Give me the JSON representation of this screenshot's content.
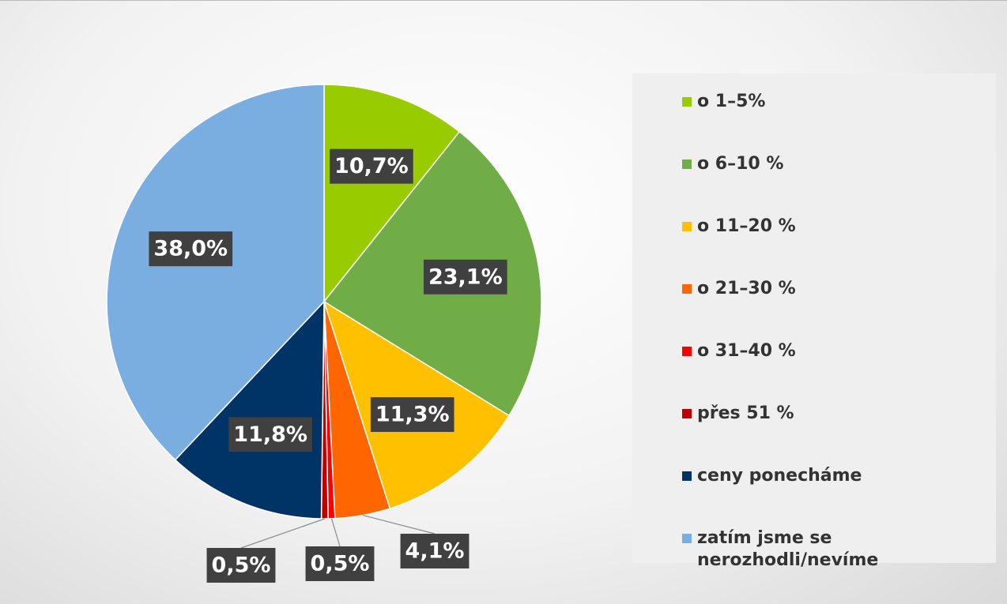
{
  "chart_data": {
    "type": "pie",
    "categories": [
      "o 1–5%",
      "o 6–10 %",
      "o 11–20 %",
      "o 21–30 %",
      "o 31–40 %",
      "přes 51 %",
      "ceny ponecháme",
      "zatím jsme se nerozhodli/nevíme"
    ],
    "values": [
      10.7,
      23.1,
      11.3,
      4.1,
      0.5,
      0.5,
      11.8,
      38.0
    ],
    "value_labels": [
      "10,7%",
      "23,1%",
      "11,3%",
      "4,1%",
      "0,5%",
      "0,5%",
      "11,8%",
      "38,0%"
    ],
    "colors": [
      "#99cc00",
      "#70ad47",
      "#ffc000",
      "#ff6600",
      "#ff0000",
      "#c00000",
      "#003366",
      "#7aaee0"
    ],
    "legend": "right"
  }
}
